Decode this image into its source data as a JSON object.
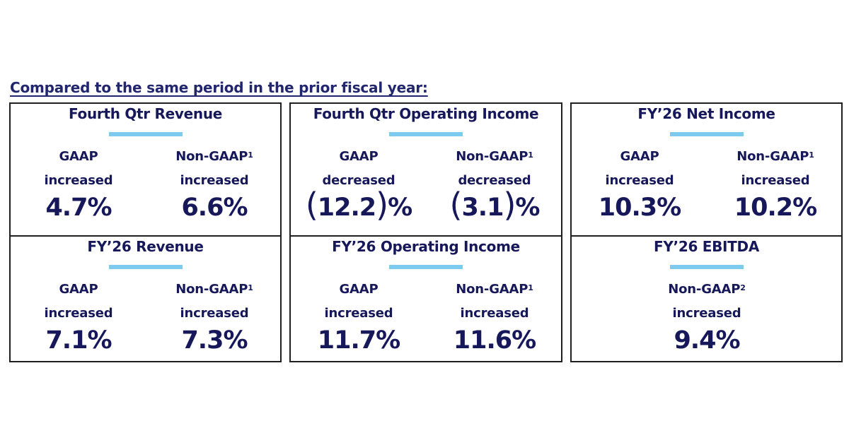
{
  "heading": "Compared to the same period in the prior fiscal year:",
  "colors": {
    "text": "#16185a",
    "accent_bar": "#7ccbef",
    "border": "#1f1f1f"
  },
  "cards": [
    {
      "title": "Fourth Qtr Revenue",
      "columns": [
        {
          "label": "GAAP",
          "sup": "",
          "direction": "increased",
          "value": "4.7%"
        },
        {
          "label": "Non-GAAP",
          "sup": "1",
          "direction": "increased",
          "value": "6.6%"
        }
      ]
    },
    {
      "title": "Fourth Qtr Operating Income",
      "columns": [
        {
          "label": "GAAP",
          "sup": "",
          "direction": "decreased",
          "value_open": "(",
          "value_num": "12.2",
          "value_close": ")",
          "value_unit": "%"
        },
        {
          "label": "Non-GAAP",
          "sup": "1",
          "direction": "decreased",
          "value_open": "(",
          "value_num": "3.1",
          "value_close": ")",
          "value_unit": "%"
        }
      ]
    },
    {
      "title": "FY’26 Net Income",
      "columns": [
        {
          "label": "GAAP",
          "sup": "",
          "direction": "increased",
          "value": "10.3%"
        },
        {
          "label": "Non-GAAP",
          "sup": "1",
          "direction": "increased",
          "value": "10.2%"
        }
      ]
    },
    {
      "title": "FY’26  Revenue",
      "columns": [
        {
          "label": "GAAP",
          "sup": "",
          "direction": "increased",
          "value": "7.1%"
        },
        {
          "label": "Non-GAAP",
          "sup": "1",
          "direction": "increased",
          "value": "7.3%"
        }
      ]
    },
    {
      "title": "FY’26  Operating Income",
      "columns": [
        {
          "label": "GAAP",
          "sup": "",
          "direction": "increased",
          "value": "11.7%"
        },
        {
          "label": "Non-GAAP",
          "sup": "1",
          "direction": "increased",
          "value": "11.6%"
        }
      ]
    },
    {
      "title": "FY’26 EBITDA",
      "columns": [
        {
          "label": "Non-GAAP",
          "sup": "2",
          "direction": "increased",
          "value": "9.4%"
        }
      ]
    }
  ]
}
